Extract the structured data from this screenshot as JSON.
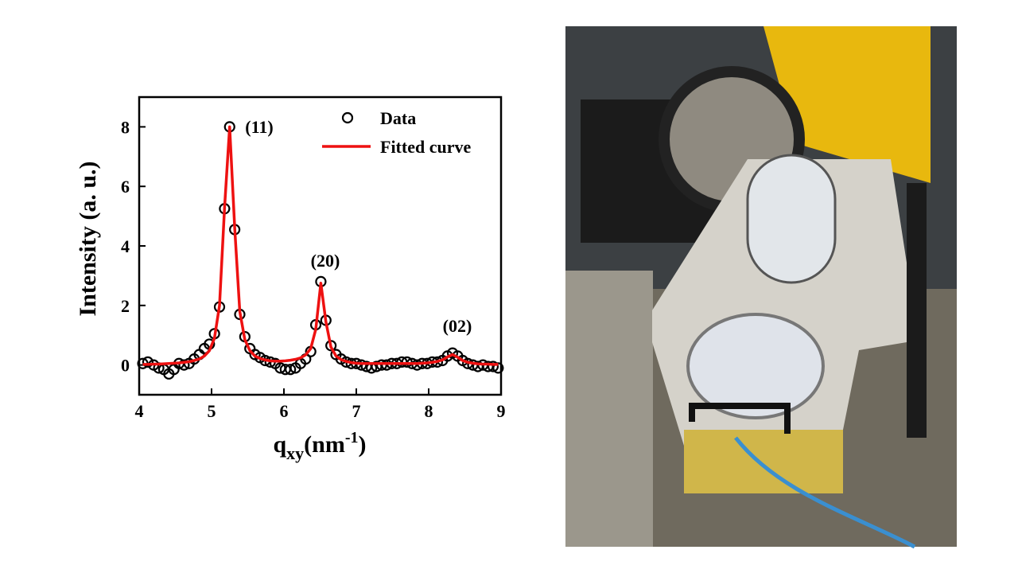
{
  "chart_data": {
    "type": "scatter",
    "x_label": {
      "base": "q",
      "sub": "xy",
      "main": "(nm",
      "sup": "-1",
      "end": ")"
    },
    "y_label": "Intensity (a. u.)",
    "x": [
      4.05,
      4.12,
      4.2,
      4.27,
      4.34,
      4.41,
      4.48,
      4.55,
      4.62,
      4.69,
      4.76,
      4.83,
      4.9,
      4.97,
      5.04,
      5.11,
      5.18,
      5.25,
      5.32,
      5.39,
      5.46,
      5.53,
      5.6,
      5.67,
      5.74,
      5.81,
      5.88,
      5.95,
      6.02,
      6.09,
      6.16,
      6.23,
      6.3,
      6.37,
      6.44,
      6.51,
      6.58,
      6.65,
      6.72,
      6.79,
      6.86,
      6.93,
      7.0,
      7.07,
      7.14,
      7.21,
      7.28,
      7.35,
      7.42,
      7.49,
      7.56,
      7.63,
      7.7,
      7.77,
      7.84,
      7.91,
      7.98,
      8.05,
      8.12,
      8.19,
      8.26,
      8.33,
      8.4,
      8.47,
      8.54,
      8.61,
      8.68,
      8.75,
      8.82,
      8.89,
      8.96
    ],
    "series": [
      {
        "name": "Data",
        "color": "#000000",
        "style": "markers",
        "values": [
          0.05,
          0.1,
          0,
          -0.1,
          -0.15,
          -0.3,
          -0.15,
          0.05,
          0,
          0.05,
          0.2,
          0.35,
          0.55,
          0.7,
          1.05,
          1.95,
          5.25,
          8,
          4.55,
          1.7,
          0.95,
          0.55,
          0.35,
          0.25,
          0.15,
          0.1,
          0.05,
          -0.1,
          -0.15,
          -0.15,
          -0.1,
          0.05,
          0.2,
          0.45,
          1.35,
          2.8,
          1.5,
          0.65,
          0.35,
          0.2,
          0.1,
          0.05,
          0.05,
          0,
          -0.05,
          -0.1,
          -0.05,
          0,
          0,
          0.05,
          0.05,
          0.1,
          0.1,
          0.05,
          0,
          0.05,
          0.05,
          0.1,
          0.1,
          0.15,
          0.3,
          0.4,
          0.3,
          0.15,
          0.05,
          0,
          -0.05,
          0,
          -0.05,
          -0.05,
          -0.1
        ]
      },
      {
        "name": "Fitted curve",
        "color": "#ee1111",
        "style": "line",
        "values": [
          0.02,
          0.02,
          0.03,
          0.03,
          0.04,
          0.05,
          0.06,
          0.07,
          0.09,
          0.11,
          0.15,
          0.2,
          0.3,
          0.48,
          0.9,
          2.0,
          5.3,
          8,
          4.6,
          1.8,
          0.85,
          0.48,
          0.3,
          0.22,
          0.17,
          0.14,
          0.13,
          0.13,
          0.14,
          0.16,
          0.19,
          0.24,
          0.34,
          0.55,
          1.2,
          2.75,
          1.45,
          0.6,
          0.3,
          0.18,
          0.12,
          0.08,
          0.06,
          0.05,
          0.05,
          0.05,
          0.05,
          0.05,
          0.05,
          0.05,
          0.05,
          0.05,
          0.05,
          0.05,
          0.05,
          0.06,
          0.07,
          0.09,
          0.12,
          0.17,
          0.27,
          0.35,
          0.26,
          0.15,
          0.09,
          0.06,
          0.04,
          0.03,
          0.03,
          0.02,
          0.02
        ]
      }
    ],
    "annotations": [
      "(11)",
      "(20)",
      "(02)"
    ],
    "xlim": [
      4,
      9
    ],
    "xticks": [
      4,
      5,
      6,
      7,
      8,
      9
    ],
    "ylim": [
      -1,
      9
    ],
    "yticks": [
      0,
      2,
      4,
      6,
      8
    ],
    "legend": "upper right"
  }
}
